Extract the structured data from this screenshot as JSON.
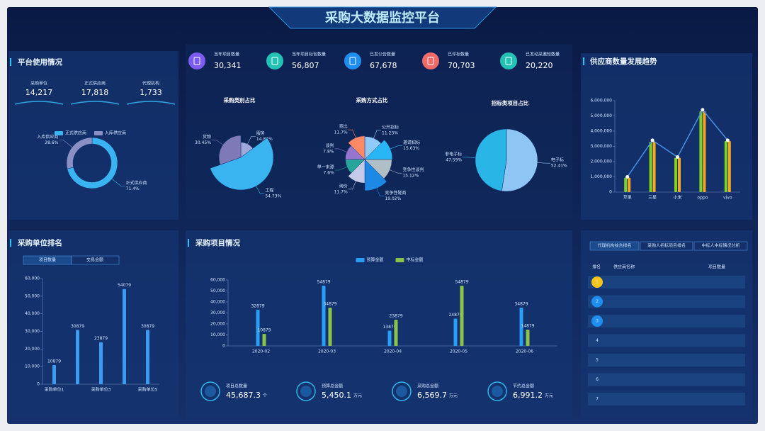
{
  "header": {
    "title": "采购大数据监控平台"
  },
  "platform": {
    "title": "平台使用情况",
    "stats": [
      {
        "label": "采购单位",
        "value": "14,217"
      },
      {
        "label": "正式供应商",
        "value": "17,818"
      },
      {
        "label": "代理机构",
        "value": "1,733"
      }
    ]
  },
  "kpis": [
    {
      "label": "当年项目数量",
      "value": "30,341"
    },
    {
      "label": "当年项目标包数量",
      "value": "56,807"
    },
    {
      "label": "已发公告数量",
      "value": "67,678"
    },
    {
      "label": "已评标数量",
      "value": "70,703"
    },
    {
      "label": "已发动采邀知数量",
      "value": "20,220"
    }
  ],
  "chart_data": [
    {
      "type": "pie",
      "donut": true,
      "legend": "top",
      "categories": [
        "正式供应商",
        "入库供应商"
      ],
      "values": [
        71.4,
        28.6
      ],
      "value_labels": [
        "71.4%",
        "28.6%"
      ],
      "colors": [
        "#3ab4f0",
        "#8a8fc4"
      ]
    },
    {
      "type": "pie",
      "rose": "radius",
      "title": "采购类别占比",
      "categories": [
        "服务",
        "工程",
        "货物"
      ],
      "values": [
        14.82,
        54.73,
        30.45
      ],
      "value_labels": [
        "14.82%",
        "54.73%",
        "30.45%"
      ],
      "colors": [
        "#9fa8da",
        "#3ab4f0",
        "#7e7ab8"
      ]
    },
    {
      "type": "pie",
      "rose": "area",
      "title": "采购方式占比",
      "categories": [
        "公开招标",
        "邀请招标",
        "竞争性谈判",
        "竞争性磋商",
        "询价",
        "单一来源",
        "谈判",
        "竞比"
      ],
      "values": [
        11.23,
        15.63,
        15.12,
        19.02,
        11.7,
        7.6,
        7.8,
        11.7
      ],
      "value_labels": [
        "11.23%",
        "15.63%",
        "15.12%",
        "19.02%",
        "11.7%",
        "7.6%",
        "7.8%",
        "11.7%"
      ],
      "colors": [
        "#90caf9",
        "#29b6f6",
        "#b0bec5",
        "#1e88e5",
        "#c5cae9",
        "#26a69a",
        "#9575cd",
        "#ff8a65"
      ]
    },
    {
      "type": "pie",
      "title": "招标类项目占比",
      "categories": [
        "电子标",
        "非电子标"
      ],
      "values": [
        52.41,
        47.59
      ],
      "value_labels": [
        "52.41%",
        "47.59%"
      ],
      "colors": [
        "#8ec5f5",
        "#29b6e6"
      ]
    },
    {
      "type": "bar",
      "title": "供应商数量发展趋势",
      "categories": [
        "苹果",
        "三星",
        "小米",
        "oppo",
        "vivo"
      ],
      "series": [
        {
          "color": "#7ed321",
          "values": [
            950000,
            3300000,
            2250000,
            5300000,
            3350000
          ]
        },
        {
          "color": "#f5a623",
          "values": [
            950000,
            3300000,
            2250000,
            5300000,
            3350000
          ]
        },
        {
          "color": "#4a90e2",
          "mark": "line",
          "values": [
            1000000,
            3400000,
            2300000,
            5400000,
            3400000
          ]
        }
      ],
      "ylim": [
        0,
        6000000
      ],
      "yticks": [
        0,
        {
          "value": 1000000,
          "label": "1,000,000"
        },
        {
          "value": 2000000,
          "label": "2,000,000"
        },
        {
          "value": 3000000,
          "label": "3,000,000"
        },
        {
          "value": 4000000,
          "label": "4,000,000"
        },
        {
          "value": 5000000,
          "label": "5,000,000"
        },
        {
          "value": 6000000,
          "label": "6,000,000"
        }
      ]
    },
    {
      "type": "bar",
      "title": "采购单位排名",
      "tabs": [
        "项目数量",
        "交易金额"
      ],
      "data_labels": true,
      "categories": [
        "采购单位1",
        null,
        "采购单位3",
        null,
        "采购单位5"
      ],
      "values": [
        10879,
        30879,
        23879,
        54079,
        30879
      ],
      "color": "#3a9bf0",
      "ylim": [
        0,
        60000
      ],
      "yticks": [
        0,
        {
          "value": 10000,
          "label": "10,000"
        },
        {
          "value": 20000,
          "label": "20,000"
        },
        {
          "value": 30000,
          "label": "30,000"
        },
        {
          "value": 40000,
          "label": "40,000"
        },
        {
          "value": 50000,
          "label": "50,000"
        },
        {
          "value": 60000,
          "label": "60,000"
        }
      ]
    },
    {
      "type": "bar",
      "title": "采购项目情况",
      "legend": "top",
      "data_labels": true,
      "categories": [
        "2020-02",
        "2020-03",
        "2020-04",
        "2020-05",
        "2020-06"
      ],
      "series": [
        {
          "name": "预算金额",
          "color": "#2a9df4",
          "values": [
            32879,
            54879,
            13879,
            24879,
            34879
          ]
        },
        {
          "name": "中标金额",
          "color": "#8bc34a",
          "values": [
            10879,
            34879,
            23879,
            54879,
            14879
          ]
        }
      ],
      "ylim": [
        0,
        60000
      ],
      "yticks": [
        0,
        {
          "value": 10000,
          "label": "10,000"
        },
        {
          "value": 20000,
          "label": "20,000"
        },
        {
          "value": 30000,
          "label": "30,000"
        },
        {
          "value": 40000,
          "label": "40,000"
        },
        {
          "value": 50000,
          "label": "50,000"
        },
        {
          "value": 60000,
          "label": "60,000"
        }
      ]
    }
  ],
  "summary": [
    {
      "label": "项目总数量",
      "value": "45,687.3",
      "unit": "个"
    },
    {
      "label": "预算总金额",
      "value": "5,450.1",
      "unit": "万元"
    },
    {
      "label": "采购总金额",
      "value": "6,569.7",
      "unit": "万元"
    },
    {
      "label": "节约总金额",
      "value": "6,991.2",
      "unit": "万元"
    }
  ],
  "ranking": {
    "tabs": [
      "代理机构综合排名",
      "采购人招标项目排名",
      "中标人中标情况分析"
    ],
    "columns": [
      "排名",
      "供应商名称",
      "项目数量"
    ],
    "rows": [
      "1",
      "2",
      "3",
      "4",
      "5",
      "6",
      "7"
    ]
  }
}
